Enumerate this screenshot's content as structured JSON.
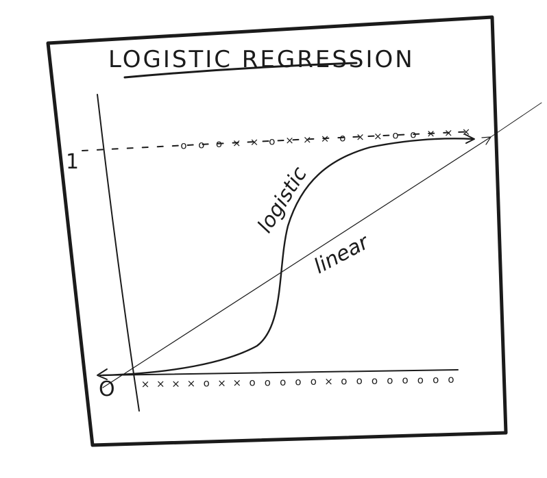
{
  "title": "LOGISTIC REGRESSION",
  "y_tick_top": "1",
  "y_tick_bottom": "O",
  "labels": {
    "logistic": "logistic",
    "linear": "linear"
  },
  "markers": {
    "top_row": [
      "o",
      "o",
      "o",
      "×",
      "×",
      "o",
      "×",
      "×",
      "×",
      "o",
      "×",
      "×",
      "o",
      "o",
      "×",
      "×",
      "×"
    ],
    "bottom_row": [
      "×",
      "×",
      "×",
      "×",
      "o",
      "×",
      "×",
      "o",
      "o",
      "o",
      "o",
      "o",
      "×",
      "o",
      "o",
      "o",
      "o",
      "o",
      "o",
      "o",
      "o"
    ]
  },
  "colors": {
    "ink": "#1b1b1b",
    "paper": "#ffffff"
  }
}
